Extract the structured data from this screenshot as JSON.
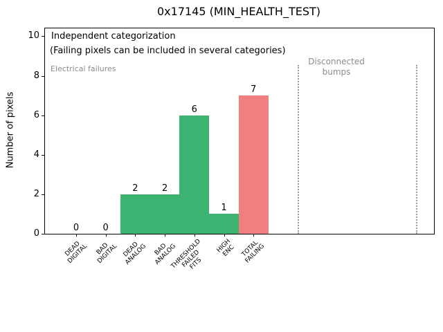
{
  "chart_data": {
    "type": "bar",
    "title": "0x17145 (MIN_HEALTH_TEST)",
    "xlabel": "",
    "ylabel": "Number of pixels",
    "ylim": [
      0,
      10.4
    ],
    "yticks": [
      0,
      2,
      4,
      6,
      8,
      10
    ],
    "grid": false,
    "legend": null,
    "categories": [
      "DEAD\nDIGITAL",
      "BAD\nDIGITAL",
      "DEAD\nANALOG",
      "BAD\nANALOG",
      "THRESHOLD\nFAILED\nFITS",
      "HIGH\nENC",
      "TOTAL\nFAILING"
    ],
    "values": [
      0,
      0,
      2,
      2,
      6,
      1,
      7
    ],
    "bar_value_labels": [
      "0",
      "0",
      "2",
      "2",
      "6",
      "1",
      "7"
    ],
    "bar_colors": [
      "#3cb371",
      "#3cb371",
      "#3cb371",
      "#3cb371",
      "#3cb371",
      "#3cb371",
      "#f08080"
    ],
    "bar_width": 1.0,
    "dotted_lines_x": [
      7.5,
      11.5
    ],
    "annotations": {
      "line1": "Independent categorization",
      "line2": "(Failing pixels can be included in several categories)",
      "electrical": "Electrical failures",
      "disconnected": "Disconnected\nbumps"
    },
    "colors": {
      "green_bar": "#3cb371",
      "red_bar": "#f08080",
      "gray_text": "#8c8c8c",
      "dotted_line": "#999999",
      "axis": "#000000"
    }
  }
}
